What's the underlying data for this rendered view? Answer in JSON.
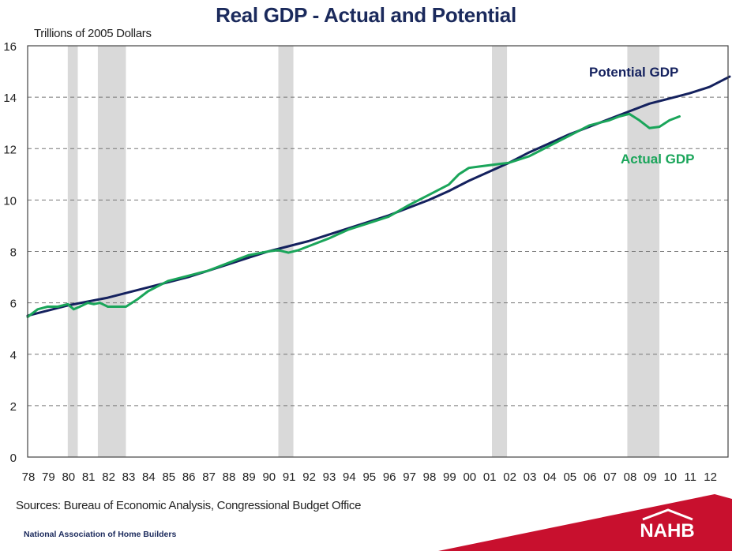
{
  "title": "Real GDP - Actual and Potential",
  "sources": "Sources: Bureau of Economic Analysis, Congressional Budget Office",
  "footer": {
    "organization": "National Association of Home Builders",
    "logo_text": "NAHB",
    "logo_icon": "house-roof-icon",
    "brand_color": "#c8102e"
  },
  "chart_data": {
    "type": "line",
    "title": "Real GDP - Actual and Potential",
    "xlabel": "",
    "ylabel": "Trillions of 2005 Dollars",
    "ylim": [
      0,
      16
    ],
    "xlim": [
      1978,
      2013
    ],
    "yticks": [
      0,
      2,
      4,
      6,
      8,
      10,
      12,
      14,
      16
    ],
    "xtick_labels": [
      "78",
      "79",
      "80",
      "81",
      "82",
      "83",
      "84",
      "85",
      "86",
      "87",
      "88",
      "89",
      "90",
      "91",
      "92",
      "93",
      "94",
      "95",
      "96",
      "97",
      "98",
      "99",
      "00",
      "01",
      "02",
      "03",
      "04",
      "05",
      "06",
      "07",
      "08",
      "09",
      "10",
      "11",
      "12"
    ],
    "grid": "horizontal dashed",
    "colors": {
      "potential": "#14215e",
      "actual": "#1aa55a",
      "recession": "#d9d9d9",
      "grid": "#777777"
    },
    "recessions": [
      [
        1980.0,
        1980.5
      ],
      [
        1981.5,
        1982.9
      ],
      [
        1990.5,
        1991.25
      ],
      [
        2001.15,
        2001.9
      ],
      [
        2007.9,
        2009.5
      ]
    ],
    "series": [
      {
        "name": "Potential GDP",
        "label_position": "top-right",
        "x": [
          1978,
          1979,
          1980,
          1981,
          1982,
          1983,
          1984,
          1985,
          1986,
          1987,
          1988,
          1989,
          1990,
          1991,
          1992,
          1993,
          1994,
          1995,
          1996,
          1997,
          1998,
          1999,
          2000,
          2001,
          2002,
          2003,
          2004,
          2005,
          2006,
          2007,
          2008,
          2009,
          2010,
          2011,
          2012,
          2013
        ],
        "values": [
          5.5,
          5.7,
          5.9,
          6.05,
          6.2,
          6.4,
          6.6,
          6.8,
          7.0,
          7.25,
          7.5,
          7.75,
          8.0,
          8.2,
          8.4,
          8.65,
          8.9,
          9.15,
          9.4,
          9.7,
          10.0,
          10.35,
          10.75,
          11.1,
          11.45,
          11.85,
          12.2,
          12.55,
          12.85,
          13.15,
          13.45,
          13.75,
          13.95,
          14.15,
          14.4,
          14.8
        ]
      },
      {
        "name": "Actual GDP",
        "label_position": "right",
        "x": [
          1978,
          1978.5,
          1979,
          1979.5,
          1980,
          1980.3,
          1980.6,
          1981,
          1981.3,
          1981.6,
          1982,
          1982.5,
          1982.9,
          1983.5,
          1984,
          1985,
          1986,
          1987,
          1988,
          1989,
          1990,
          1990.5,
          1991,
          1991.5,
          1992,
          1993,
          1994,
          1995,
          1996,
          1997,
          1998,
          1999,
          1999.5,
          2000,
          2000.5,
          2001,
          2001.5,
          2002,
          2003,
          2004,
          2005,
          2006,
          2007,
          2007.5,
          2008,
          2008.5,
          2009,
          2009.5,
          2010,
          2010.5
        ],
        "values": [
          5.45,
          5.75,
          5.85,
          5.85,
          5.95,
          5.75,
          5.85,
          6.0,
          5.95,
          6.0,
          5.85,
          5.85,
          5.85,
          6.15,
          6.45,
          6.85,
          7.05,
          7.25,
          7.55,
          7.85,
          8.0,
          8.05,
          7.95,
          8.05,
          8.2,
          8.5,
          8.85,
          9.1,
          9.35,
          9.8,
          10.2,
          10.6,
          11.0,
          11.25,
          11.3,
          11.35,
          11.4,
          11.45,
          11.7,
          12.1,
          12.5,
          12.9,
          13.1,
          13.25,
          13.35,
          13.1,
          12.8,
          12.85,
          13.1,
          13.25
        ]
      }
    ]
  }
}
